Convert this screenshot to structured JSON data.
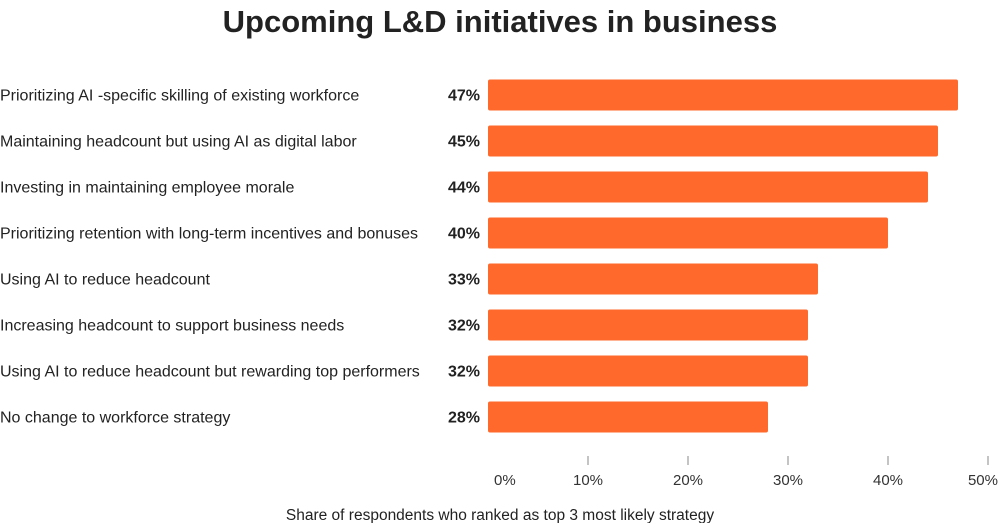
{
  "chart_data": {
    "type": "bar",
    "orientation": "horizontal",
    "title": "Upcoming L&D initiatives in business",
    "categories": [
      "Prioritizing AI -specific skilling of existing workforce",
      "Maintaining headcount but using AI as digital labor",
      "Investing in maintaining employee morale",
      "Prioritizing retention with long-term incentives and bonuses",
      "Using AI to reduce headcount",
      "Increasing headcount to support business needs",
      "Using AI to reduce headcount but rewarding top performers",
      "No change to workforce strategy"
    ],
    "values": [
      47,
      45,
      44,
      40,
      33,
      32,
      32,
      28
    ],
    "value_labels": [
      "47%",
      "45%",
      "44%",
      "40%",
      "33%",
      "32%",
      "32%",
      "28%"
    ],
    "xlim": [
      0,
      50
    ],
    "xticks": [
      0,
      10,
      20,
      30,
      40,
      50
    ],
    "xtick_labels": [
      "0%",
      "10%",
      "20%",
      "30%",
      "40%",
      "50%"
    ],
    "xlabel": "Share of respondents who ranked as top 3 most likely strategy",
    "ylabel": "",
    "grid": false,
    "legend": "none",
    "bar_color": "#ff6a2c"
  }
}
